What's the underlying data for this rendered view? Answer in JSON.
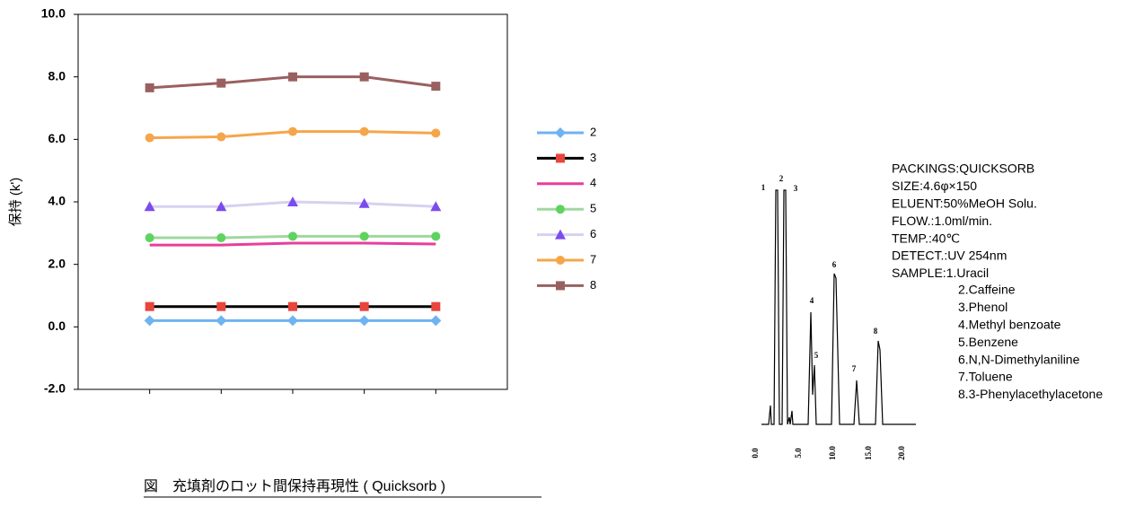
{
  "chart_data": {
    "type": "line",
    "ylabel": "保持 (k')",
    "caption": "図　充填剤のロット間保持再現性 ( Quicksorb )",
    "categories": [
      null,
      null,
      null,
      null,
      null
    ],
    "ylim": [
      -2,
      10
    ],
    "yticks": [
      {
        "value": -2,
        "label": "-2.0"
      },
      {
        "value": 0,
        "label": "0.0"
      },
      {
        "value": 2,
        "label": "2.0"
      },
      {
        "value": 4,
        "label": "4.0"
      },
      {
        "value": 6,
        "label": "6.0"
      },
      {
        "value": 8,
        "label": "8.0"
      },
      {
        "value": 10,
        "label": "10.0"
      }
    ],
    "series": [
      {
        "name": "2",
        "color": "#6fb3f0",
        "line_color": "#6fb3f0",
        "marker": "diamond",
        "values": [
          0.2,
          0.2,
          0.2,
          0.2,
          0.2
        ]
      },
      {
        "name": "3",
        "color": "#e8453c",
        "line_color": "#000000",
        "marker": "square",
        "values": [
          0.65,
          0.65,
          0.65,
          0.65,
          0.65
        ]
      },
      {
        "name": "4",
        "color": "#e83f9a",
        "line_color": "#e83f9a",
        "marker": "none",
        "values": [
          2.62,
          2.62,
          2.68,
          2.68,
          2.65
        ]
      },
      {
        "name": "5",
        "color": "#5fd35f",
        "line_color": "#9fd89f",
        "marker": "circle",
        "values": [
          2.85,
          2.85,
          2.9,
          2.9,
          2.9
        ]
      },
      {
        "name": "6",
        "color": "#7a4cf0",
        "line_color": "#d8d0f0",
        "marker": "triangle",
        "values": [
          3.85,
          3.85,
          4.0,
          3.95,
          3.85
        ]
      },
      {
        "name": "7",
        "color": "#f5a64a",
        "line_color": "#f5a64a",
        "marker": "circle",
        "values": [
          6.05,
          6.08,
          6.25,
          6.25,
          6.2
        ]
      },
      {
        "name": "8",
        "color": "#9a6060",
        "line_color": "#9a6060",
        "marker": "square",
        "values": [
          7.65,
          7.8,
          8.0,
          8.0,
          7.7
        ]
      }
    ]
  },
  "chromatogram": {
    "peak_labels": [
      "1",
      "2",
      "3",
      "4",
      "5",
      "6",
      "7",
      "8"
    ],
    "axis_labels": [
      "0.0",
      "5.0",
      "10.0",
      "15.0",
      "20.0"
    ],
    "conditions": [
      "PACKINGS:QUICKSORB",
      "SIZE:4.6φ×150",
      "ELUENT:50%MeOH Solu.",
      "FLOW.:1.0ml/min.",
      "TEMP.:40℃",
      "DETECT.:UV 254nm",
      "SAMPLE:1.Uracil"
    ],
    "samples": [
      "2.Caffeine",
      "3.Phenol",
      "4.Methyl benzoate",
      "5.Benzene",
      "6.N,N-Dimethylaniline",
      "7.Toluene",
      "8.3-Phenylacethylacetone"
    ]
  }
}
